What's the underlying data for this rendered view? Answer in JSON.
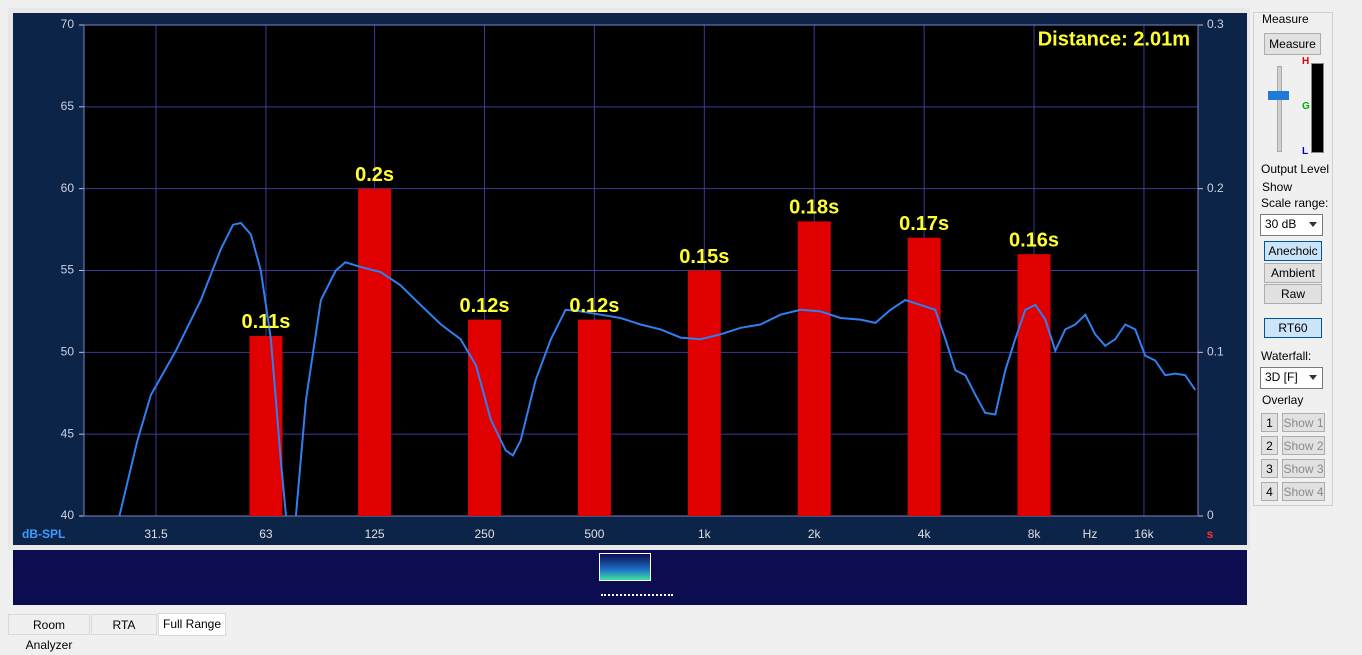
{
  "chart_data": {
    "type": "line",
    "annotation": "Distance: 2.01m",
    "ylabel": "dB-SPL",
    "xlabel": "Hz",
    "y2label": "s",
    "xscale": "log",
    "xlim": [
      20,
      22500
    ],
    "ylim": [
      40,
      70
    ],
    "y2lim": [
      0,
      0.3
    ],
    "xticks": [
      31.5,
      63,
      125,
      250,
      500,
      {
        "value": 1000,
        "label": "1k"
      },
      {
        "value": 2000,
        "label": "2k"
      },
      {
        "value": 4000,
        "label": "4k"
      },
      {
        "value": 8000,
        "label": "8k"
      },
      {
        "value": 16000,
        "label": "16k"
      }
    ],
    "yticks": [
      40,
      45,
      50,
      55,
      60,
      65,
      70
    ],
    "y2ticks": [
      0,
      0.1,
      0.2,
      0.3
    ],
    "grid": true,
    "series": [
      {
        "type": "line",
        "color": "#2f7ff0",
        "x": [
          25,
          28,
          30.5,
          35.7,
          41.8,
          47.4,
          51.2,
          53.8,
          57.3,
          61,
          65,
          69.2,
          71.5,
          72.8,
          76.1,
          81.1,
          89.1,
          97.9,
          104,
          115,
          130,
          147,
          167,
          190,
          215,
          237,
          260,
          286,
          299,
          314,
          345,
          380,
          417,
          459,
          520,
          590,
          669,
          759,
          861,
          977,
          1108,
          1257,
          1425,
          1617,
          1835,
          2081,
          2360,
          2678,
          2942,
          3235,
          3553,
          3909,
          4293,
          4574,
          4873,
          5188,
          5528,
          5881,
          6265,
          6675,
          7106,
          7573,
          8064,
          8590,
          9148,
          9746,
          10376,
          11057,
          11765,
          12534,
          13350,
          14219,
          15142,
          16128,
          17180,
          18298,
          19492,
          20759,
          22113
        ],
        "values": [
          40,
          44.6,
          47.4,
          50.1,
          53.2,
          56.3,
          57.8,
          57.9,
          57.2,
          55,
          50.8,
          43.4,
          40,
          36,
          40,
          47.1,
          53.2,
          55,
          55.5,
          55.2,
          54.9,
          54.1,
          52.9,
          51.7,
          50.8,
          49.2,
          45.9,
          44,
          43.7,
          44.6,
          48.3,
          50.8,
          52.6,
          52.5,
          52.3,
          52.1,
          51.7,
          51.4,
          50.9,
          50.8,
          51.1,
          51.5,
          51.7,
          52.3,
          52.6,
          52.5,
          52.1,
          52,
          51.8,
          52.6,
          53.2,
          52.9,
          52.6,
          50.8,
          48.9,
          48.6,
          47.4,
          46.3,
          46.2,
          48.9,
          50.8,
          52.6,
          52.9,
          52,
          50.1,
          51.4,
          51.7,
          52.3,
          51.1,
          50.4,
          50.8,
          51.7,
          51.4,
          49.8,
          49.5,
          48.6,
          48.7,
          48.6,
          47.7
        ]
      },
      {
        "type": "bar",
        "axis": "y2",
        "color": "#e00000",
        "x": [
          63,
          125,
          250,
          500,
          1000,
          2000,
          4000,
          8000
        ],
        "values": [
          0.11,
          0.2,
          0.12,
          0.12,
          0.15,
          0.18,
          0.17,
          0.16
        ],
        "value_labels": [
          "0.11s",
          "0.2s",
          "0.12s",
          "0.12s",
          "0.15s",
          "0.18s",
          "0.17s",
          "0.16s"
        ]
      }
    ]
  },
  "panel": {
    "measure": {
      "title": "Measure",
      "button": "Measure",
      "meter_labels": [
        "H",
        "G",
        "L"
      ],
      "caption": "Output Level"
    },
    "show": {
      "title": "Show",
      "scale_label": "Scale range:",
      "scale_value": "30 dB",
      "views": [
        "Anechoic",
        "Ambient",
        "Raw"
      ],
      "rt60": "RT60",
      "waterfall_label": "Waterfall:",
      "waterfall_value": "3D [F]",
      "overlay_title": "Overlay",
      "overlays": [
        {
          "number": "1",
          "button": "Show 1"
        },
        {
          "number": "2",
          "button": "Show 2"
        },
        {
          "number": "3",
          "button": "Show 3"
        },
        {
          "number": "4",
          "button": "Show 4"
        }
      ]
    }
  },
  "tabs": [
    "Room Analyzer",
    "RTA",
    "Full Range"
  ]
}
